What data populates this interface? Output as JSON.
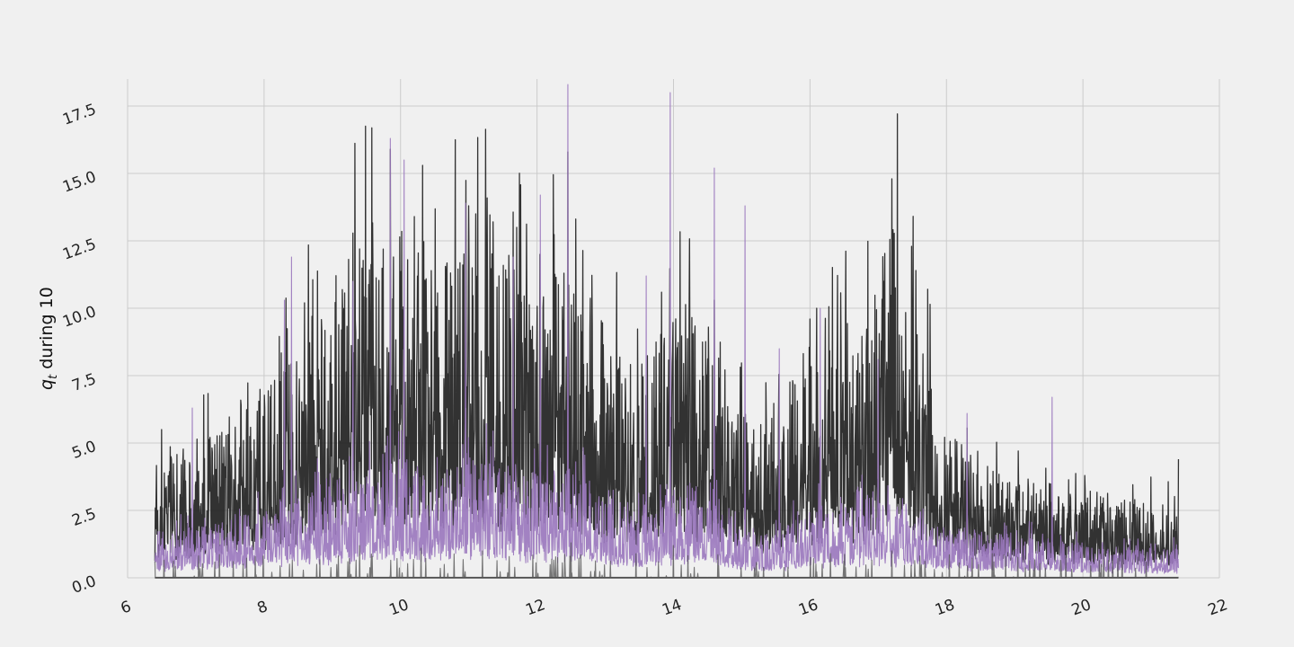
{
  "chart_data": {
    "type": "line",
    "title": "",
    "xlabel": "",
    "ylabel": "during 10",
    "ylabel_symbol": "q",
    "ylabel_subscript": "t",
    "xlim": [
      6,
      22
    ],
    "ylim": [
      0,
      18.5
    ],
    "x_ticks": [
      "6",
      "8",
      "10",
      "12",
      "14",
      "16",
      "18",
      "20",
      "22"
    ],
    "y_ticks": [
      "0.0",
      "2.5",
      "5.0",
      "7.5",
      "10.0",
      "12.5",
      "15.0",
      "17.5"
    ],
    "grid": true,
    "legend": "none",
    "x_range": [
      6.4,
      21.4
    ],
    "series": [
      {
        "color": "#222222",
        "envelope_x": [
          6.4,
          7,
          8,
          9,
          9.5,
          10,
          10.5,
          11,
          11.5,
          12,
          12.5,
          13,
          13.5,
          14,
          14.5,
          15,
          15.5,
          16,
          16.5,
          17,
          17.2,
          17.5,
          18,
          18.5,
          19,
          19.5,
          20,
          20.5,
          21,
          21.4
        ],
        "envelope_mean": [
          2.5,
          2.6,
          3.8,
          5.8,
          6.8,
          7.0,
          6.5,
          7.0,
          6.6,
          6.3,
          6.2,
          4.8,
          4.2,
          5.5,
          5.2,
          3.3,
          3.2,
          4.6,
          5.0,
          5.2,
          7.5,
          5.5,
          3.0,
          2.2,
          2.1,
          1.9,
          1.7,
          1.6,
          1.5,
          1.6
        ],
        "spikes": [
          [
            6.5,
            5.5
          ],
          [
            8.7,
            9.7
          ],
          [
            9.4,
            12.2
          ],
          [
            9.85,
            15.9
          ],
          [
            10.2,
            13.4
          ],
          [
            11.0,
            13.8
          ],
          [
            11.1,
            13.5
          ],
          [
            11.7,
            13.0
          ],
          [
            12.45,
            15.8
          ],
          [
            14.6,
            10.3
          ],
          [
            16.1,
            10.0
          ],
          [
            17.2,
            14.8
          ],
          [
            17.55,
            11.4
          ],
          [
            21.4,
            4.4
          ]
        ]
      },
      {
        "color": "#9b78be",
        "envelope_x": [
          6.4,
          7,
          8,
          9,
          9.5,
          10,
          10.5,
          11,
          11.5,
          12,
          12.5,
          13,
          13.5,
          14,
          14.5,
          15,
          15.5,
          16,
          16.5,
          17,
          17.5,
          18,
          18.5,
          19,
          19.5,
          20,
          20.5,
          21,
          21.4
        ],
        "envelope_mean": [
          0.9,
          1.0,
          1.4,
          1.9,
          2.1,
          2.2,
          2.1,
          2.5,
          2.3,
          2.1,
          2.2,
          1.6,
          1.3,
          1.8,
          2.0,
          1.0,
          0.9,
          1.4,
          1.5,
          1.6,
          1.4,
          1.0,
          0.9,
          0.9,
          0.8,
          0.7,
          0.6,
          0.6,
          0.6
        ],
        "spikes": [
          [
            6.95,
            6.3
          ],
          [
            8.4,
            11.9
          ],
          [
            8.3,
            10.3
          ],
          [
            9.3,
            11.0
          ],
          [
            9.85,
            16.3
          ],
          [
            10.05,
            15.5
          ],
          [
            10.95,
            13.9
          ],
          [
            11.65,
            11.9
          ],
          [
            12.05,
            14.2
          ],
          [
            12.45,
            18.3
          ],
          [
            13.6,
            11.2
          ],
          [
            13.95,
            18.0
          ],
          [
            14.6,
            15.2
          ],
          [
            15.05,
            13.8
          ],
          [
            15.55,
            8.5
          ],
          [
            16.15,
            10.0
          ],
          [
            17.0,
            8.1
          ],
          [
            18.3,
            6.1
          ],
          [
            19.55,
            6.7
          ]
        ]
      },
      {
        "color": "#555555",
        "envelope_x": [
          6.4,
          21.4
        ],
        "envelope_mean": [
          0.1,
          0.1
        ],
        "spikes": [
          [
            9.4,
            1.2
          ],
          [
            10.3,
            1.1
          ],
          [
            11.2,
            1.0
          ],
          [
            12.5,
            1.3
          ],
          [
            14.0,
            1.2
          ],
          [
            16.3,
            0.9
          ],
          [
            17.2,
            1.0
          ]
        ]
      }
    ]
  }
}
